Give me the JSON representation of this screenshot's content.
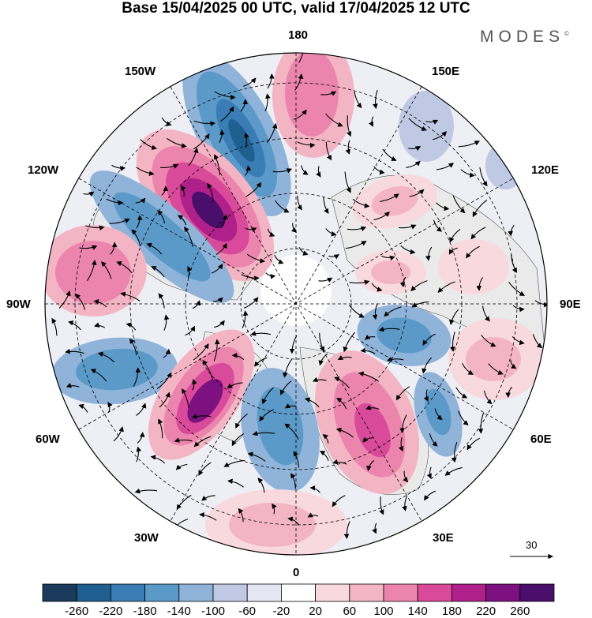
{
  "title": "Base 15/04/2025 00 UTC, valid 17/04/2025 12 UTC",
  "brand": "MODES",
  "brand_mark": "©",
  "longitude_labels": {
    "top": "180",
    "bottom": "0",
    "left": "90W",
    "right": "90E",
    "upper_left_1": "150W",
    "upper_left_2": "120W",
    "upper_right_1": "150E",
    "upper_right_2": "120E",
    "lower_left_1": "60W",
    "lower_left_2": "30W",
    "lower_right_1": "60E",
    "lower_right_2": "30E"
  },
  "reference_vector": {
    "value": "30"
  },
  "colorbar": {
    "labels": [
      "-260",
      "-220",
      "-180",
      "-140",
      "-100",
      "-60",
      "-20",
      "20",
      "60",
      "100",
      "140",
      "180",
      "220",
      "260"
    ],
    "colors": [
      "#1b3a5c",
      "#1f5f8f",
      "#3a7db5",
      "#5b9ac8",
      "#8fb3d9",
      "#c0c9e4",
      "#e6e6f2",
      "#ffffff",
      "#f8d9dd",
      "#f3b5c4",
      "#ec85ae",
      "#d94a9a",
      "#b0208a",
      "#7d117f",
      "#4a0e6b"
    ]
  },
  "colors": {
    "land": "#ececec",
    "land_edge": "#555555"
  }
}
